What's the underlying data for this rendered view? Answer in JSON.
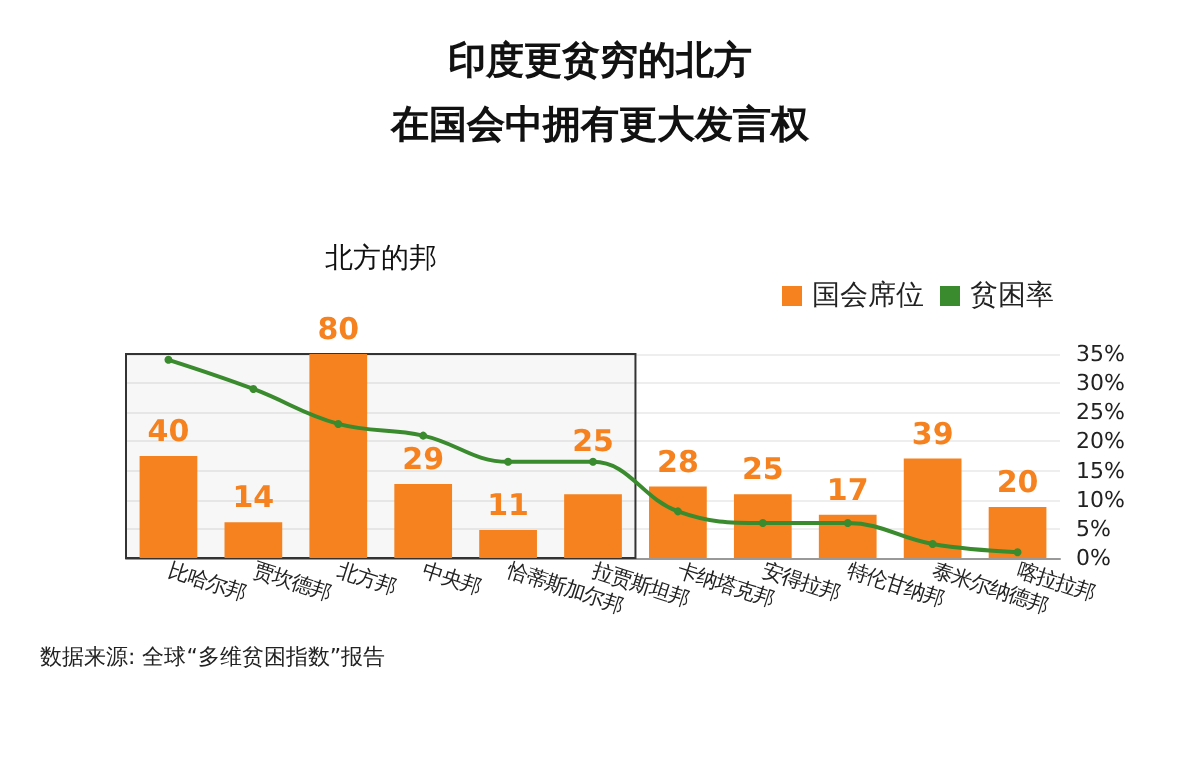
{
  "chart_data": {
    "type": "bar",
    "title": "印度更贫穷的北方",
    "subtitle": "在国会中拥有更大发言权",
    "categories": [
      "比哈尔邦",
      "贾坎德邦",
      "北方邦",
      "中央邦",
      "恰蒂斯加尔邦",
      "拉贾斯坦邦",
      "卡纳塔克邦",
      "安得拉邦",
      "特伦甘纳邦",
      "泰米尔纳德邦",
      "喀拉拉邦"
    ],
    "series": [
      {
        "name": "国会席位",
        "color": "#f5821f",
        "values": [
          40,
          14,
          80,
          29,
          11,
          25,
          28,
          25,
          17,
          39,
          20
        ],
        "value_labels": [
          "40",
          "14",
          "80",
          "29",
          "11",
          "25",
          "28",
          "25",
          "17",
          "39",
          "20"
        ]
      },
      {
        "name": "贫困率",
        "type": "line",
        "axis": "y2",
        "color": "#3a8a2e",
        "marker": "circle",
        "values": [
          34,
          29,
          23,
          21,
          16.5,
          16.5,
          8,
          6,
          6,
          2.4,
          1
        ]
      }
    ],
    "y2lim": [
      0,
      35
    ],
    "y2ticks": [
      {
        "value": 0,
        "label": "0%"
      },
      {
        "value": 5,
        "label": "5%"
      },
      {
        "value": 10,
        "label": "10%"
      },
      {
        "value": 15,
        "label": "15%"
      },
      {
        "value": 20,
        "label": "20%"
      },
      {
        "value": 25,
        "label": "25%"
      },
      {
        "value": 30,
        "label": "30%"
      },
      {
        "value": 35,
        "label": "35%"
      }
    ],
    "grid": "y",
    "legend": "top right",
    "bands": [
      {
        "axis": "x",
        "from": "比哈尔邦",
        "to": "拉贾斯坦邦",
        "label": "北方的邦",
        "color": "#333333"
      }
    ],
    "annotations": [
      "数据来源: 全球“多维贫困指数”报告"
    ]
  }
}
